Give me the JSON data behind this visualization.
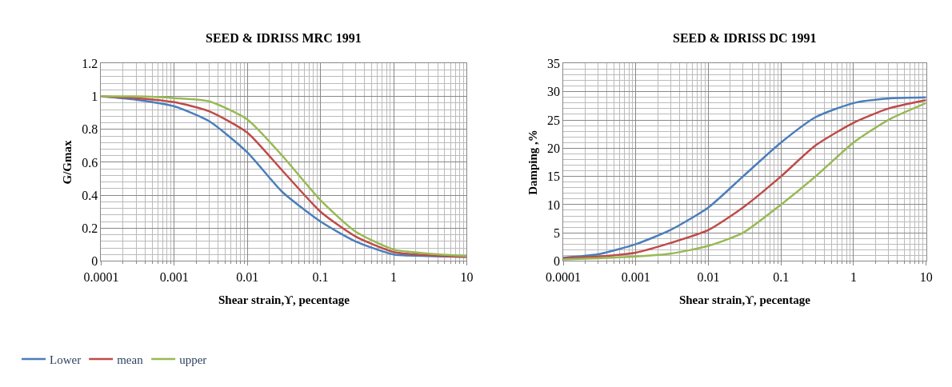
{
  "chart_data": [
    {
      "type": "line",
      "title": "SEED & IDRISS MRC 1991",
      "xlabel": "Shear strain,ϒ, pecentage",
      "ylabel": "G/Gmax",
      "log": "x",
      "grid": true,
      "legend": "bottom",
      "xlim": [
        0.0001,
        10
      ],
      "xticks": [
        0.0001,
        0.001,
        0.01,
        0.1,
        1,
        10
      ],
      "ylim": [
        0,
        1.2
      ],
      "yticks": [
        0,
        0.2,
        0.4,
        0.6,
        0.8,
        1,
        1.2
      ],
      "x": [
        0.0001,
        0.0003,
        0.001,
        0.003,
        0.01,
        0.03,
        0.1,
        0.3,
        1,
        3,
        10
      ],
      "series": [
        {
          "name": "Lower",
          "color": "#4a7ebb",
          "values": [
            1,
            0.98,
            0.94,
            0.85,
            0.66,
            0.42,
            0.24,
            0.12,
            0.04,
            0.03,
            0.025
          ]
        },
        {
          "name": "mean",
          "color": "#be4b48",
          "values": [
            1,
            0.99,
            0.965,
            0.91,
            0.78,
            0.55,
            0.3,
            0.15,
            0.055,
            0.035,
            0.025
          ]
        },
        {
          "name": "upper",
          "color": "#98b954",
          "values": [
            1,
            1,
            0.99,
            0.97,
            0.86,
            0.64,
            0.37,
            0.18,
            0.07,
            0.045,
            0.03
          ]
        }
      ]
    },
    {
      "type": "line",
      "title": "SEED & IDRISS DC 1991",
      "xlabel": "Shear strain,ϒ, pecentage",
      "ylabel": "Damping ,%",
      "log": "x",
      "grid": true,
      "xlim": [
        0.0001,
        10
      ],
      "xticks": [
        0.0001,
        0.001,
        0.01,
        0.1,
        1,
        10
      ],
      "ylim": [
        0,
        35
      ],
      "yticks": [
        0,
        5,
        10,
        15,
        20,
        25,
        30,
        35
      ],
      "x": [
        0.0001,
        0.0003,
        0.001,
        0.003,
        0.01,
        0.03,
        0.1,
        0.3,
        1,
        3,
        10
      ],
      "series": [
        {
          "color": "#4a7ebb",
          "values": [
            0.6,
            1.2,
            3,
            5.5,
            9.5,
            15,
            21,
            25.5,
            28,
            28.8,
            29
          ]
        },
        {
          "color": "#be4b48",
          "values": [
            0.5,
            0.8,
            1.5,
            3.2,
            5.5,
            9.5,
            15,
            20.5,
            24.5,
            27,
            28.5
          ]
        },
        {
          "color": "#98b954",
          "values": [
            0.3,
            0.5,
            0.8,
            1.3,
            2.7,
            5,
            10,
            15,
            21,
            25,
            28
          ]
        }
      ]
    }
  ]
}
